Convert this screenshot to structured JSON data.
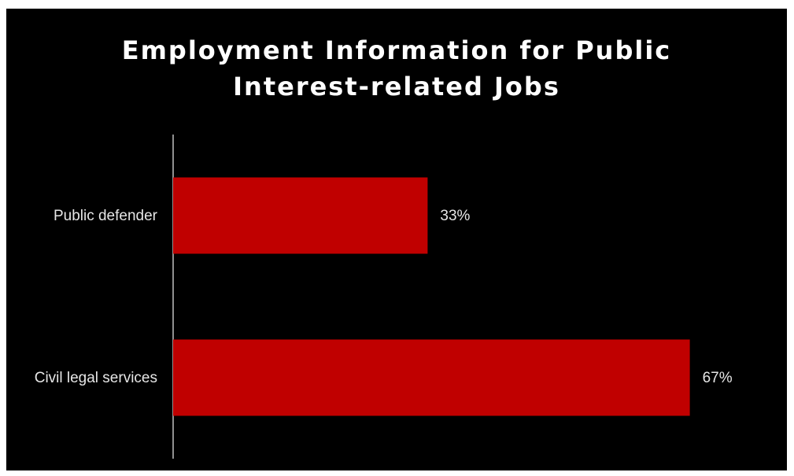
{
  "chart_data": {
    "type": "bar",
    "orientation": "horizontal",
    "title": "Employment Information for Public\nInterest-related Jobs",
    "categories": [
      "Public defender",
      "Civil legal services"
    ],
    "values": [
      33,
      67
    ],
    "value_labels": [
      "33%",
      "67%"
    ],
    "unit": "%",
    "xlim": [
      0,
      100
    ],
    "grid": false,
    "legend": "none",
    "background_color": "#000000",
    "bar_color": "#c00000",
    "axis_color": "#bfbfbf",
    "text_color": "#ffffff"
  }
}
